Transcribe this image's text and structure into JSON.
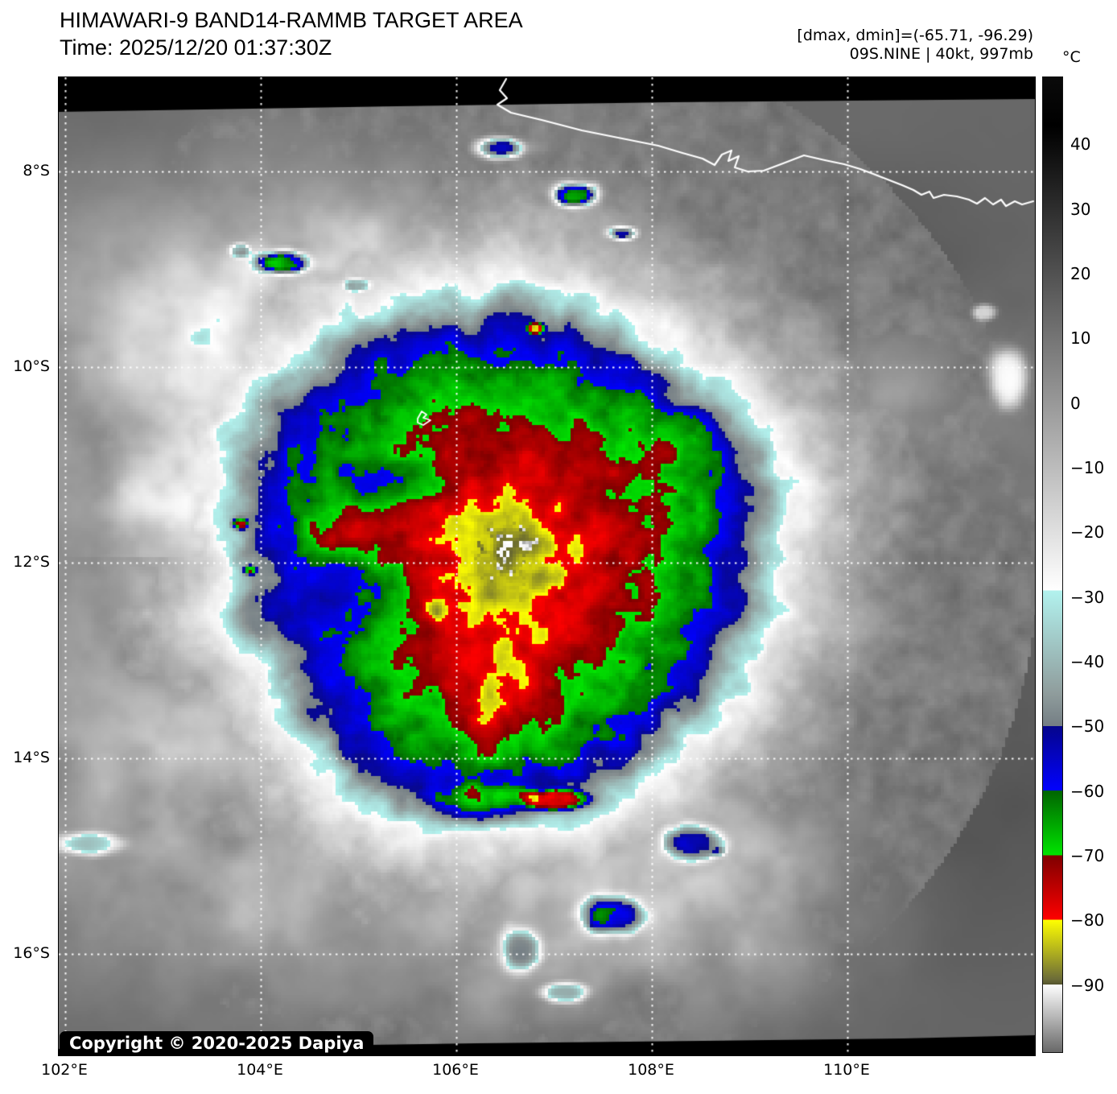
{
  "header": {
    "title": "HIMAWARI-9 BAND14-RAMMB TARGET AREA",
    "time": "Time: 2025/12/20 01:37:30Z",
    "dmax_dmin": "[dmax, dmin]=(-65.71, -96.29)",
    "storm_info": "09S.NINE | 40kt, 997mb"
  },
  "colorbar": {
    "unit": "°C",
    "top_temp": 50.5,
    "bottom_temp": -100.5,
    "ticks": [
      {
        "t": 40,
        "label": "40"
      },
      {
        "t": 30,
        "label": "30"
      },
      {
        "t": 20,
        "label": "20"
      },
      {
        "t": 10,
        "label": "10"
      },
      {
        "t": 0,
        "label": "0"
      },
      {
        "t": -10,
        "label": "−10"
      },
      {
        "t": -20,
        "label": "−20"
      },
      {
        "t": -30,
        "label": "−30"
      },
      {
        "t": -40,
        "label": "−40"
      },
      {
        "t": -50,
        "label": "−50"
      },
      {
        "t": -60,
        "label": "−60"
      },
      {
        "t": -70,
        "label": "−70"
      },
      {
        "t": -80,
        "label": "−80"
      },
      {
        "t": -90,
        "label": "−90"
      }
    ],
    "stops": [
      {
        "t": 50.5,
        "c": "#0a0a0a"
      },
      {
        "t": 43.0,
        "c": "#000000"
      },
      {
        "t": -27.5,
        "c": "#fafafa"
      },
      {
        "t": -29.0,
        "c": "#ffffff"
      },
      {
        "t": -29.0,
        "c": "#b2f2ee"
      },
      {
        "t": -45.0,
        "c": "#8f9c9c"
      },
      {
        "t": -50.0,
        "c": "#747e84"
      },
      {
        "t": -50.0,
        "c": "#05058c"
      },
      {
        "t": -60.0,
        "c": "#0202fe"
      },
      {
        "t": -60.0,
        "c": "#016401"
      },
      {
        "t": -70.0,
        "c": "#00e400"
      },
      {
        "t": -70.0,
        "c": "#7e0000"
      },
      {
        "t": -80.0,
        "c": "#fe0000"
      },
      {
        "t": -80.0,
        "c": "#ffff00"
      },
      {
        "t": -89.2,
        "c": "#6c6c38"
      },
      {
        "t": -90.0,
        "c": "#55552e"
      },
      {
        "t": -90.0,
        "c": "#ffffff"
      },
      {
        "t": -100.5,
        "c": "#686868"
      }
    ]
  },
  "map": {
    "lat_ticks": [
      {
        "deg": 8,
        "label": "8°S"
      },
      {
        "deg": 10,
        "label": "10°S"
      },
      {
        "deg": 12,
        "label": "12°S"
      },
      {
        "deg": 14,
        "label": "14°S"
      },
      {
        "deg": 16,
        "label": "16°S"
      }
    ],
    "lon_ticks": [
      {
        "deg": 102,
        "label": "102°E"
      },
      {
        "deg": 104,
        "label": "104°E"
      },
      {
        "deg": 106,
        "label": "106°E"
      },
      {
        "deg": 108,
        "label": "108°E"
      },
      {
        "deg": 110,
        "label": "110°E"
      }
    ]
  },
  "copyright": "Copyright © 2020-2025 Dapiya"
}
